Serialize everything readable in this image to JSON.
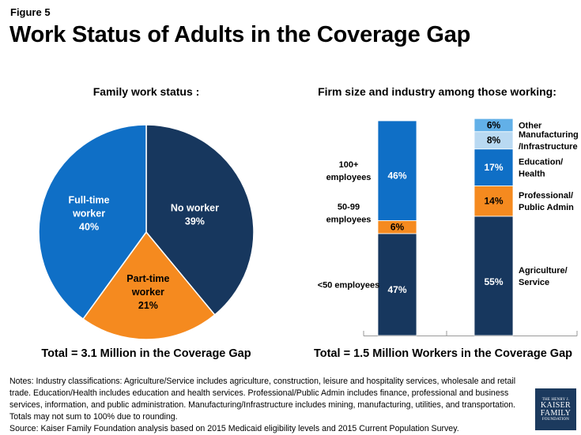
{
  "figure_label": "Figure 5",
  "title": "Work Status of Adults in the Coverage Gap",
  "chart_data": [
    {
      "type": "pie",
      "title": "Family work status :",
      "slices": [
        {
          "label_lines": [
            "No worker",
            "39%"
          ],
          "value": 39,
          "color": "#17375e"
        },
        {
          "label_lines": [
            "Part-time",
            "worker",
            "21%"
          ],
          "value": 21,
          "color": "#f58a1f"
        },
        {
          "label_lines": [
            "Full-time",
            "worker",
            "40%"
          ],
          "value": 40,
          "color": "#0f6fc6"
        }
      ],
      "total_label": "Total = 3.1 Million in the Coverage Gap"
    },
    {
      "type": "bar",
      "stacked": true,
      "title": "Firm size and industry among those working:",
      "ylim": [
        0,
        100
      ],
      "bars": [
        {
          "name": "Firm size",
          "segments": [
            {
              "value": 47,
              "value_label": "47%",
              "label_lines": [
                "<50 employees"
              ],
              "color": "#17375e"
            },
            {
              "value": 6,
              "value_label": "6%",
              "label_lines": [
                "50-99",
                "employees"
              ],
              "color": "#f58a1f"
            },
            {
              "value": 46,
              "value_label": "46%",
              "label_lines": [
                "100+",
                "employees"
              ],
              "color": "#0f6fc6"
            }
          ]
        },
        {
          "name": "Industry",
          "segments": [
            {
              "value": 55,
              "value_label": "55%",
              "label_lines": [
                "Agriculture/",
                "Service"
              ],
              "color": "#17375e"
            },
            {
              "value": 14,
              "value_label": "14%",
              "label_lines": [
                "Professional/",
                "Public Admin"
              ],
              "color": "#f58a1f"
            },
            {
              "value": 17,
              "value_label": "17%",
              "label_lines": [
                "Education/",
                "Health"
              ],
              "color": "#0f6fc6"
            },
            {
              "value": 8,
              "value_label": "8%",
              "label_lines": [
                "Manufacturing",
                "/Infrastructure"
              ],
              "color": "#b9d9f2"
            },
            {
              "value": 6,
              "value_label": "6%",
              "label_lines": [
                "Other"
              ],
              "color": "#62b0e8"
            }
          ]
        }
      ],
      "total_label": "Total = 1.5 Million Workers in the Coverage Gap"
    }
  ],
  "notes": [
    "Notes: Industry classifications: Agriculture/Service includes agriculture, construction, leisure and hospitality services, wholesale and retail trade. Education/Health includes education and health services. Professional/Public Admin includes finance, professional and business services, information, and public administration. Manufacturing/Infrastructure includes mining, manufacturing, utilities, and transportation. Totals may not sum to 100% due to rounding.",
    "Source: Kaiser Family Foundation analysis based on 2015 Medicaid eligibility levels and 2015 Current Population Survey."
  ],
  "logo": {
    "line1": "THE HENRY J.",
    "line2": "KAISER",
    "line3": "FAMILY",
    "line4": "FOUNDATION"
  }
}
